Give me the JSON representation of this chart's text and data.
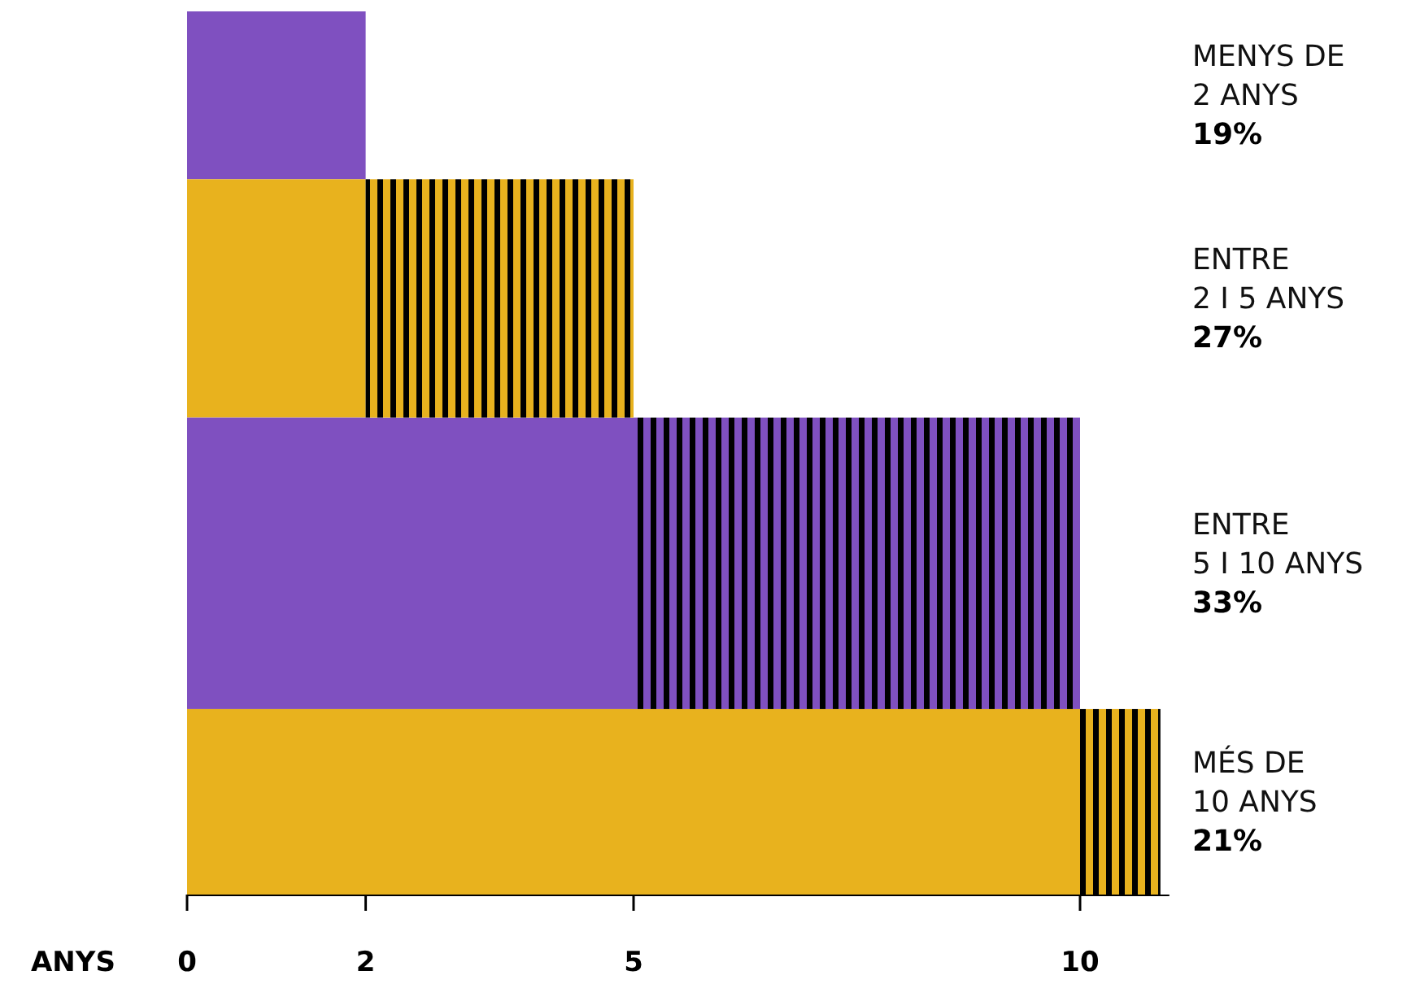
{
  "chart_data": {
    "type": "bar",
    "orientation": "horizontal",
    "stacked": true,
    "xlabel": "ANYS",
    "categories": [
      "MENYS DE\n2 ANYS",
      "ENTRE\n2 I 5 ANYS",
      "ENTRE\n5 I 10 ANYS",
      "MÉS DE\n10 ANYS"
    ],
    "series": [
      {
        "colors": [
          "#7f50c0",
          "#e8b21e",
          "#7f50c0",
          "#e8b21e"
        ],
        "values": [
          2,
          2,
          5,
          10
        ]
      },
      {
        "colors": [
          "#7f50c0",
          "#e8b21e",
          "#7f50c0",
          "#e8b21e"
        ],
        "values": [
          0,
          3,
          5,
          0.9
        ]
      }
    ],
    "xlim": [
      0,
      11
    ],
    "xticks": [
      0,
      2,
      5,
      10
    ],
    "grid": false,
    "annotations": [
      "19%",
      "27%",
      "33%",
      "21%"
    ]
  }
}
